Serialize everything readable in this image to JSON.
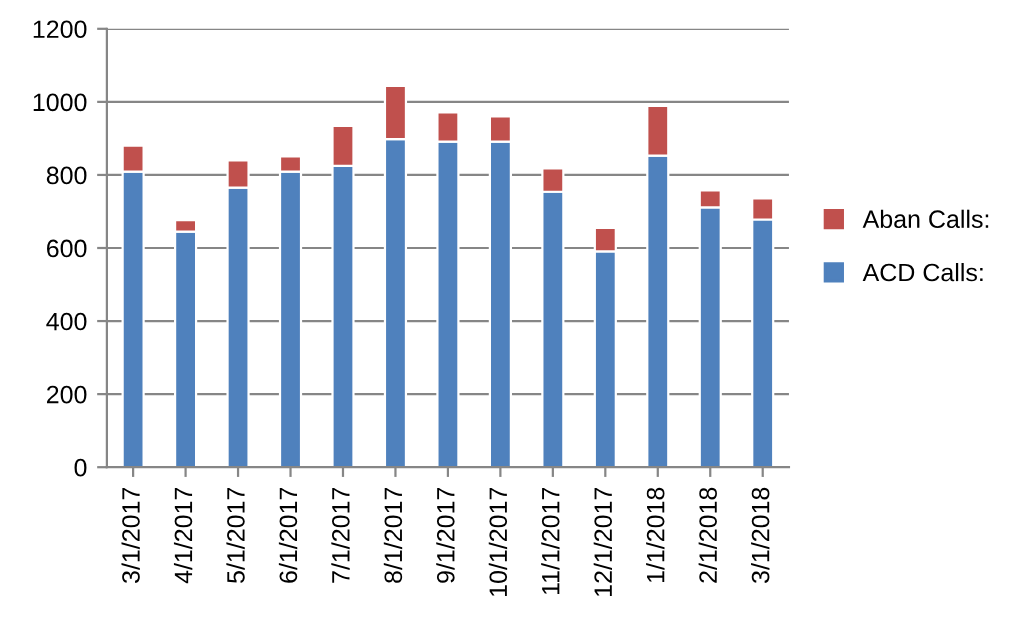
{
  "chart_data": {
    "type": "bar",
    "stacked": true,
    "categories": [
      "3/1/2017",
      "4/1/2017",
      "5/1/2017",
      "6/1/2017",
      "7/1/2017",
      "8/1/2017",
      "9/1/2017",
      "10/1/2017",
      "11/1/2017",
      "12/1/2017",
      "1/1/2018",
      "2/1/2018",
      "3/1/2018"
    ],
    "series": [
      {
        "name": "ACD Calls:",
        "color": "#4f81bd",
        "values": [
          809,
          645,
          765,
          809,
          825,
          898,
          891,
          891,
          754,
          591,
          853,
          711,
          678
        ]
      },
      {
        "name": "Aban Calls:",
        "color": "#c0504d",
        "values": [
          71,
          31,
          75,
          42,
          109,
          146,
          80,
          69,
          64,
          64,
          136,
          47,
          58
        ]
      }
    ],
    "ylim": [
      0,
      1200
    ],
    "yticks": [
      0,
      200,
      400,
      600,
      800,
      1000,
      1200
    ],
    "grid": "y",
    "legend": "right"
  }
}
